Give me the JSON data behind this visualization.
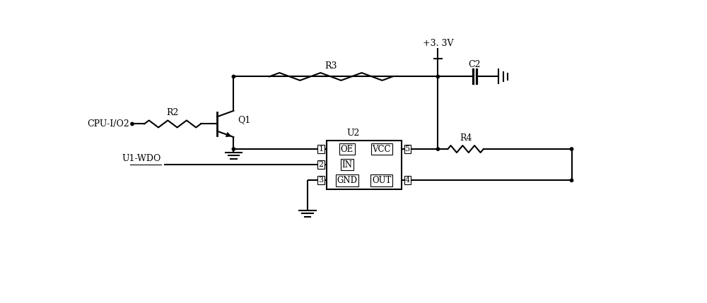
{
  "line_color": "#000000",
  "line_width": 1.5,
  "bg_color": "#ffffff",
  "figsize": [
    10.0,
    4.29
  ],
  "dpi": 100,
  "vcc_label": "+3. 3V",
  "r2_label": "R2",
  "r3_label": "R3",
  "r4_label": "R4",
  "c2_label": "C2",
  "q1_label": "Q1",
  "u2_label": "U2",
  "cpu_label": "CPU-I/O2",
  "wdo_label": "U1-WDO",
  "oe_label": "OE",
  "in_label": "IN",
  "gnd_label": "GND",
  "vcc_pin_label": "VCC",
  "out_label": "OUT",
  "pin1": "1",
  "pin2": "2",
  "pin3": "3",
  "pin4": "4",
  "pin5": "5",
  "font_size": 9,
  "pin_font_size": 8
}
